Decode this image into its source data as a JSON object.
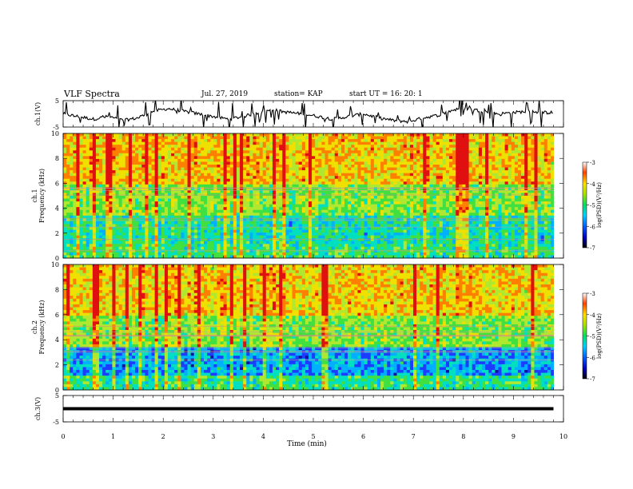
{
  "header": {
    "title": "VLF Spectra",
    "date": "Jul. 27, 2019",
    "station": "station= KAP",
    "start": "start  UT =   16: 20: 1"
  },
  "colors": {
    "spectrogram_palette": [
      "#1010a0",
      "#1c3cff",
      "#00b0ff",
      "#00e0c0",
      "#40e040",
      "#b0e830",
      "#f0e000",
      "#ff8000",
      "#e01010"
    ],
    "trace": "#000000"
  },
  "chart_data": [
    {
      "type": "line",
      "name": "ch1-waveform",
      "ylabel": "ch.1(V)",
      "ylim": [
        -5,
        5
      ],
      "yticks": [
        "5",
        "-5"
      ],
      "xlim": [
        0,
        10
      ],
      "x": [
        0,
        0.3,
        0.6,
        0.9,
        1.2,
        1.5,
        1.8,
        2.1,
        2.4,
        2.7,
        3.0,
        3.3,
        3.6,
        3.9,
        4.2,
        4.5,
        4.8,
        5.1,
        5.4,
        5.7,
        6.0,
        6.3,
        6.6,
        6.9,
        7.2,
        7.5,
        7.8,
        8.1,
        8.4,
        8.7,
        9.0,
        9.3,
        9.6,
        9.8
      ],
      "values": [
        0,
        -1,
        -2,
        -1,
        -2.5,
        -1.5,
        1,
        2,
        1,
        0,
        -1,
        -2,
        -1,
        0.5,
        1.5,
        0.5,
        0,
        -1,
        -2,
        -1,
        0,
        -1.5,
        -2.5,
        -3,
        -1.5,
        -0.5,
        1.5,
        2,
        1,
        0,
        0.5,
        1,
        0.5,
        0.5
      ]
    },
    {
      "type": "heatmap",
      "name": "ch1-spectrogram",
      "ylabel": "ch.1\nFrequency (kHz)",
      "ylim": [
        0,
        10
      ],
      "yticks": [
        "0",
        "2",
        "4",
        "6",
        "8",
        "10"
      ],
      "xlim": [
        0,
        10
      ],
      "colorbar": {
        "label": "log(PSD)(V²/Hz)",
        "range": [
          -7,
          -3
        ],
        "ticks": [
          "-3",
          "-4",
          "-5",
          "-6",
          "-7"
        ]
      }
    },
    {
      "type": "heatmap",
      "name": "ch2-spectrogram",
      "ylabel": "ch.2\nFrequency (kHz)",
      "ylim": [
        0,
        10
      ],
      "yticks": [
        "0",
        "2",
        "4",
        "6",
        "8",
        "10"
      ],
      "xlim": [
        0,
        10
      ],
      "colorbar": {
        "label": "log(PSD)(V²/Hz)",
        "range": [
          -7,
          -3
        ],
        "ticks": [
          "-3",
          "-4",
          "-5",
          "-6",
          "-7"
        ]
      }
    },
    {
      "type": "line",
      "name": "ch3-waveform",
      "ylabel": "ch.3(V)",
      "ylim": [
        -5,
        5
      ],
      "yticks": [
        "5",
        "-5"
      ],
      "xlim": [
        0,
        10
      ],
      "x": [
        0,
        9.8
      ],
      "values": [
        0,
        0
      ],
      "xlabel": "Time (min)",
      "xticks": [
        "0",
        "1",
        "2",
        "3",
        "4",
        "5",
        "6",
        "7",
        "8",
        "9",
        "10"
      ]
    }
  ]
}
